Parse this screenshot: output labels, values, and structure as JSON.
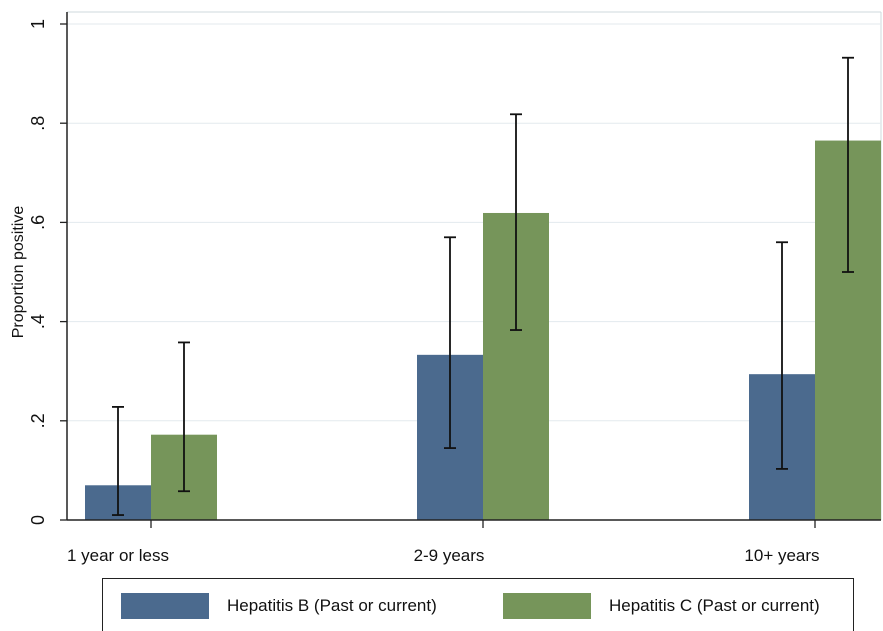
{
  "chart_data": {
    "type": "bar",
    "ylabel": "Proportion positive",
    "ylim": [
      0,
      1
    ],
    "y_ticks": [
      {
        "value": 0,
        "label": "0"
      },
      {
        "value": 0.2,
        "label": ".2"
      },
      {
        "value": 0.4,
        "label": ".4"
      },
      {
        "value": 0.6,
        "label": ".6"
      },
      {
        "value": 0.8,
        "label": ".8"
      },
      {
        "value": 1,
        "label": "1"
      }
    ],
    "categories": [
      "1 year or less",
      "2-9 years",
      "10+ years"
    ],
    "series": [
      {
        "name": "Hepatitis B (Past or current)",
        "color": "#4b6a8e",
        "values": [
          0.07,
          0.333,
          0.294
        ],
        "ci_low": [
          0.01,
          0.145,
          0.103
        ],
        "ci_high": [
          0.228,
          0.57,
          0.56
        ]
      },
      {
        "name": "Hepatitis C (Past or current)",
        "color": "#76955a",
        "values": [
          0.172,
          0.619,
          0.765
        ],
        "ci_low": [
          0.058,
          0.383,
          0.5
        ],
        "ci_high": [
          0.358,
          0.818,
          0.932
        ]
      }
    ],
    "grid": true,
    "legend_position": "bottom"
  }
}
